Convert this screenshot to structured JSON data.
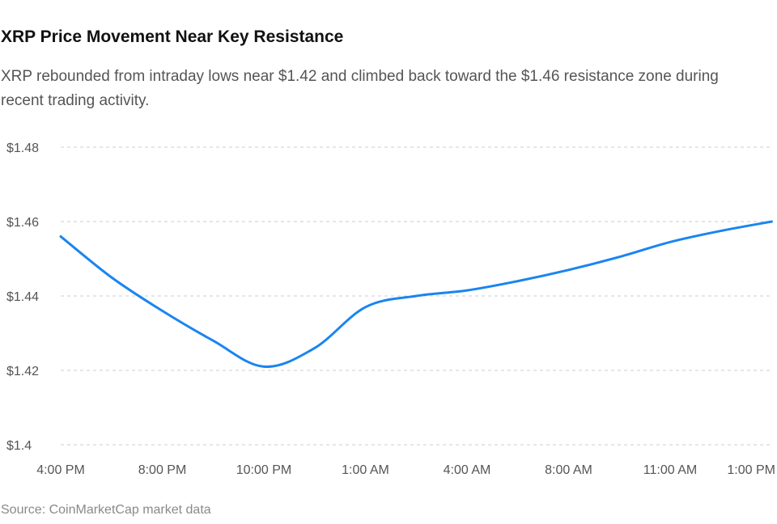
{
  "header": {
    "title": "XRP Price Movement Near Key Resistance",
    "subtitle": "XRP rebounded from intraday lows near $1.42 and climbed back toward the $1.46 resistance zone during recent trading activity."
  },
  "footer": {
    "source": "Source: CoinMarketCap market data"
  },
  "colors": {
    "line": "#1a85f0",
    "grid": "#cccccc",
    "text": "#555555"
  },
  "chart_data": {
    "type": "line",
    "title": "XRP Price Movement Near Key Resistance",
    "xlabel": "",
    "ylabel": "",
    "x_ticks": [
      "4:00 PM",
      "8:00 PM",
      "10:00 PM",
      "1:00 AM",
      "4:00 AM",
      "8:00 AM",
      "11:00 AM",
      "1:00 PM"
    ],
    "y_ticks": [
      "$1.4",
      "$1.42",
      "$1.44",
      "$1.46",
      "$1.48"
    ],
    "y_tick_values": [
      1.4,
      1.42,
      1.44,
      1.46,
      1.48
    ],
    "ylim": [
      1.4,
      1.48
    ],
    "grid": true,
    "legend": "none",
    "series": [
      {
        "points": [
          {
            "x": 0.0,
            "y": 1.456
          },
          {
            "x": 0.5,
            "y": 1.445
          },
          {
            "x": 1.0,
            "y": 1.436
          },
          {
            "x": 1.5,
            "y": 1.428
          },
          {
            "x": 2.0,
            "y": 1.421
          },
          {
            "x": 2.5,
            "y": 1.426
          },
          {
            "x": 3.0,
            "y": 1.437
          },
          {
            "x": 3.5,
            "y": 1.44
          },
          {
            "x": 4.0,
            "y": 1.4415
          },
          {
            "x": 4.5,
            "y": 1.444
          },
          {
            "x": 5.0,
            "y": 1.447
          },
          {
            "x": 5.5,
            "y": 1.4505
          },
          {
            "x": 6.0,
            "y": 1.4545
          },
          {
            "x": 6.5,
            "y": 1.4575
          },
          {
            "x": 7.0,
            "y": 1.46
          }
        ]
      }
    ]
  }
}
